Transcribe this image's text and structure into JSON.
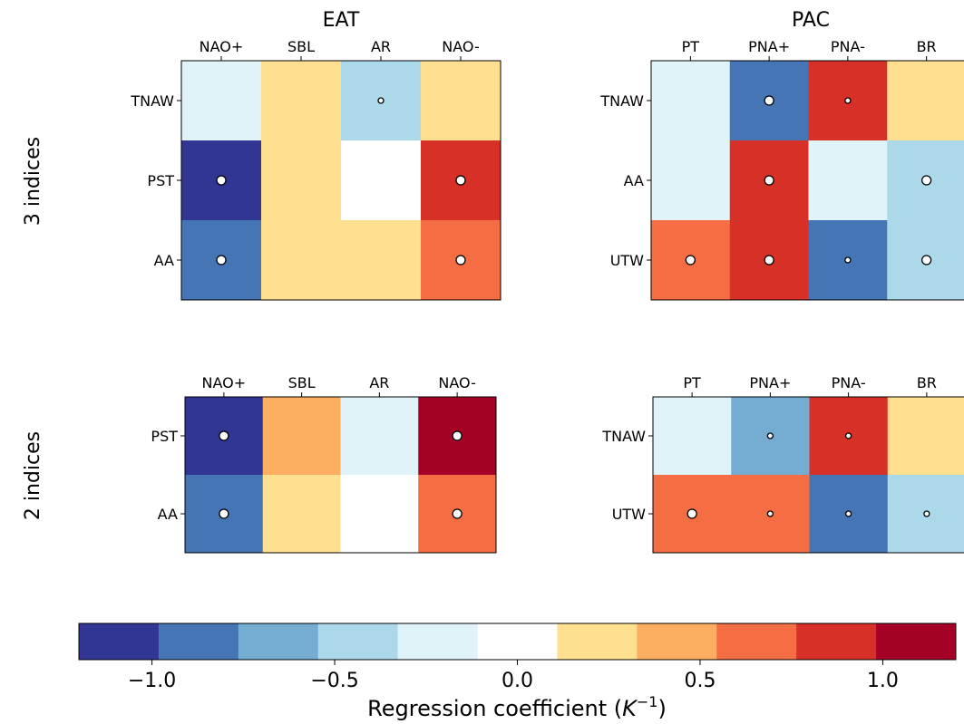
{
  "colors": {
    "bins": [
      "#313695",
      "#4575b4",
      "#74add1",
      "#abd9e9",
      "#e0f3f8",
      "#ffffff",
      "#fee090",
      "#fdae61",
      "#f46d43",
      "#d73027",
      "#a50026"
    ],
    "marker_fill": "#ffffff",
    "marker_stroke": "#000000"
  },
  "row_labels": {
    "top": "3 indices",
    "bottom": "2 indices"
  },
  "column_titles": {
    "left": "EAT",
    "right": "PAC"
  },
  "chart_data": [
    {
      "type": "heatmap",
      "title": "EAT",
      "row": "3 indices",
      "x_categories": [
        "NAO+",
        "SBL",
        "AR",
        "NAO-"
      ],
      "y_categories": [
        "TNAW",
        "PST",
        "AA"
      ],
      "values": [
        [
          -0.2,
          0.2,
          -0.4,
          0.2
        ],
        [
          -1.1,
          0.2,
          0.0,
          0.9
        ],
        [
          -0.9,
          0.2,
          0.2,
          0.7
        ]
      ],
      "significance": [
        [
          0,
          0,
          1,
          0
        ],
        [
          2,
          0,
          0,
          2
        ],
        [
          2,
          0,
          0,
          2
        ]
      ]
    },
    {
      "type": "heatmap",
      "title": "PAC",
      "row": "3 indices",
      "x_categories": [
        "PT",
        "PNA+",
        "PNA-",
        "BR"
      ],
      "y_categories": [
        "TNAW",
        "AA",
        "UTW"
      ],
      "values": [
        [
          -0.2,
          -0.9,
          0.9,
          0.2
        ],
        [
          -0.2,
          0.9,
          -0.2,
          -0.4
        ],
        [
          0.7,
          0.9,
          -0.9,
          -0.4
        ]
      ],
      "significance": [
        [
          0,
          2,
          1,
          0
        ],
        [
          0,
          2,
          0,
          2
        ],
        [
          2,
          2,
          1,
          2
        ]
      ]
    },
    {
      "type": "heatmap",
      "title": "",
      "row": "2 indices",
      "x_categories": [
        "NAO+",
        "SBL",
        "AR",
        "NAO-"
      ],
      "y_categories": [
        "PST",
        "AA"
      ],
      "values": [
        [
          -1.1,
          0.4,
          -0.2,
          1.1
        ],
        [
          -0.9,
          0.2,
          0.0,
          0.7
        ]
      ],
      "significance": [
        [
          2,
          0,
          0,
          2
        ],
        [
          2,
          0,
          0,
          2
        ]
      ]
    },
    {
      "type": "heatmap",
      "title": "",
      "row": "2 indices",
      "x_categories": [
        "PT",
        "PNA+",
        "PNA-",
        "BR"
      ],
      "y_categories": [
        "TNAW",
        "UTW"
      ],
      "values": [
        [
          -0.2,
          -0.7,
          0.9,
          0.2
        ],
        [
          0.7,
          0.7,
          -0.9,
          -0.4
        ]
      ],
      "significance": [
        [
          0,
          1,
          1,
          0
        ],
        [
          2,
          1,
          1,
          1
        ]
      ]
    }
  ],
  "colorbar": {
    "label_prefix": "Regression coefficient (",
    "label_symbol": "K",
    "label_exponent": "−1",
    "label_suffix": ")",
    "vmin": -1.2,
    "vmax": 1.2,
    "ticks": [
      -1.0,
      -0.5,
      0.0,
      0.5,
      1.0
    ],
    "tick_labels": [
      "−1.0",
      "−0.5",
      "0.0",
      "0.5",
      "1.0"
    ]
  }
}
